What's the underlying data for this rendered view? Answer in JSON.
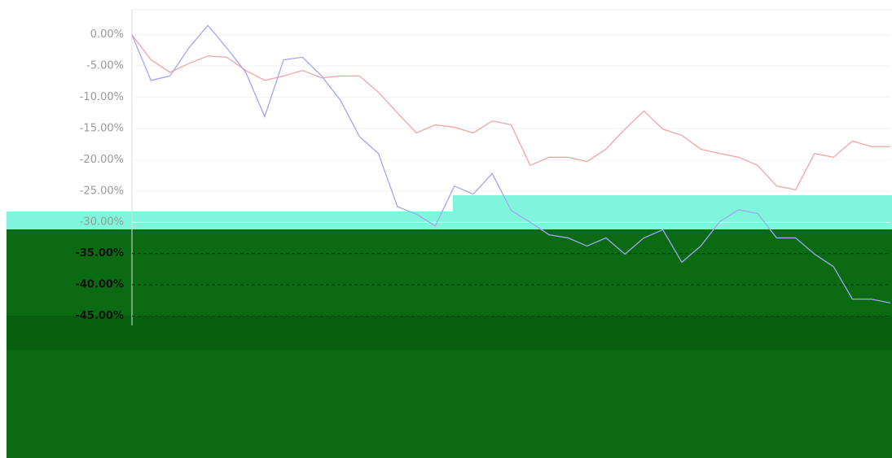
{
  "chart_data": {
    "type": "line",
    "ylim": [
      4,
      -46.5
    ],
    "yticks": [
      {
        "value": 0,
        "label": "0.00%"
      },
      {
        "value": -5,
        "label": "-5.00%"
      },
      {
        "value": -10,
        "label": "-10.00%"
      },
      {
        "value": -15,
        "label": "-15.00%"
      },
      {
        "value": -20,
        "label": "-20.00%"
      },
      {
        "value": -25,
        "label": "-25.00%"
      },
      {
        "value": -30,
        "label": "-30.00%"
      },
      {
        "value": -35,
        "label": "-35.00%"
      },
      {
        "value": -40,
        "label": "-40.00%"
      },
      {
        "value": -45,
        "label": "-45.00%"
      }
    ],
    "grid": true,
    "series": [
      {
        "color": "#f4a4a4",
        "values": [
          0,
          -4,
          -6,
          -4.6,
          -3.4,
          -3.6,
          -5.7,
          -7.3,
          -6.6,
          -5.7,
          -6.9,
          -6.6,
          -6.6,
          -9.2,
          -12.5,
          -15.7,
          -14.4,
          -14.8,
          -15.7,
          -13.8,
          -14.4,
          -20.9,
          -19.6,
          -19.6,
          -20.3,
          -18.3,
          -15.1,
          -12.2,
          -15.1,
          -16.1,
          -18.3,
          -19,
          -19.6,
          -20.9,
          -24.2,
          -24.8,
          -19,
          -19.6,
          -17,
          -17.9,
          -17.9
        ]
      },
      {
        "color": "#a4a4f4",
        "values": [
          0,
          -7.3,
          -6.6,
          -2.1,
          1.5,
          -2.1,
          -6,
          -13.1,
          -4,
          -3.6,
          -6.6,
          -10.5,
          -16.3,
          -19,
          -27.5,
          -28.7,
          -30.6,
          -24.2,
          -25.5,
          -22.2,
          -28.1,
          -30,
          -32,
          -32.5,
          -33.8,
          -32.5,
          -35.1,
          -32.5,
          -31.2,
          -36.4,
          -33.8,
          -29.9,
          -28,
          -28.6,
          -32.5,
          -32.5,
          -35.1,
          -37.1,
          -42.3,
          -42.3,
          -42.9
        ]
      }
    ]
  }
}
